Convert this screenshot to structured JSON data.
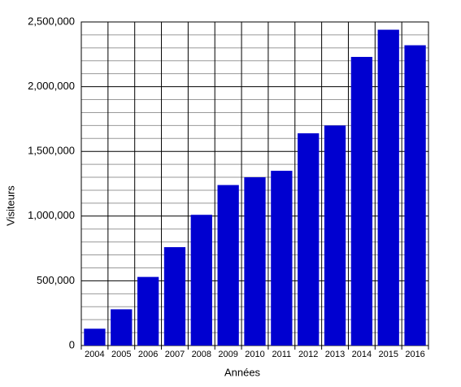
{
  "chart_data": {
    "type": "bar",
    "x_label": "Années",
    "y_label": "Visiteurs",
    "categories": [
      "2004",
      "2005",
      "2006",
      "2007",
      "2008",
      "2009",
      "2010",
      "2011",
      "2012",
      "2013",
      "2014",
      "2015",
      "2016"
    ],
    "values": [
      130000,
      280000,
      530000,
      760000,
      1010000,
      1240000,
      1300000,
      1350000,
      1640000,
      1700000,
      2230000,
      2440000,
      2320000
    ],
    "color": "#0000d0",
    "ylim": [
      0,
      2500000
    ],
    "yticks": [
      0,
      {
        "value": 500000,
        "label": "500,000"
      },
      {
        "value": 1000000,
        "label": "1,000,000"
      },
      {
        "value": 1500000,
        "label": "1,500,000"
      },
      {
        "value": 2000000,
        "label": "2,000,000"
      },
      {
        "value": 2500000,
        "label": "2,500,000"
      }
    ],
    "minor_yticks": [
      100000,
      200000,
      300000,
      400000,
      600000,
      700000,
      800000,
      900000,
      1100000,
      1200000,
      1300000,
      1400000,
      1600000,
      1700000,
      1800000,
      1900000,
      2100000,
      2200000,
      2300000,
      2400000
    ],
    "grid": true
  }
}
